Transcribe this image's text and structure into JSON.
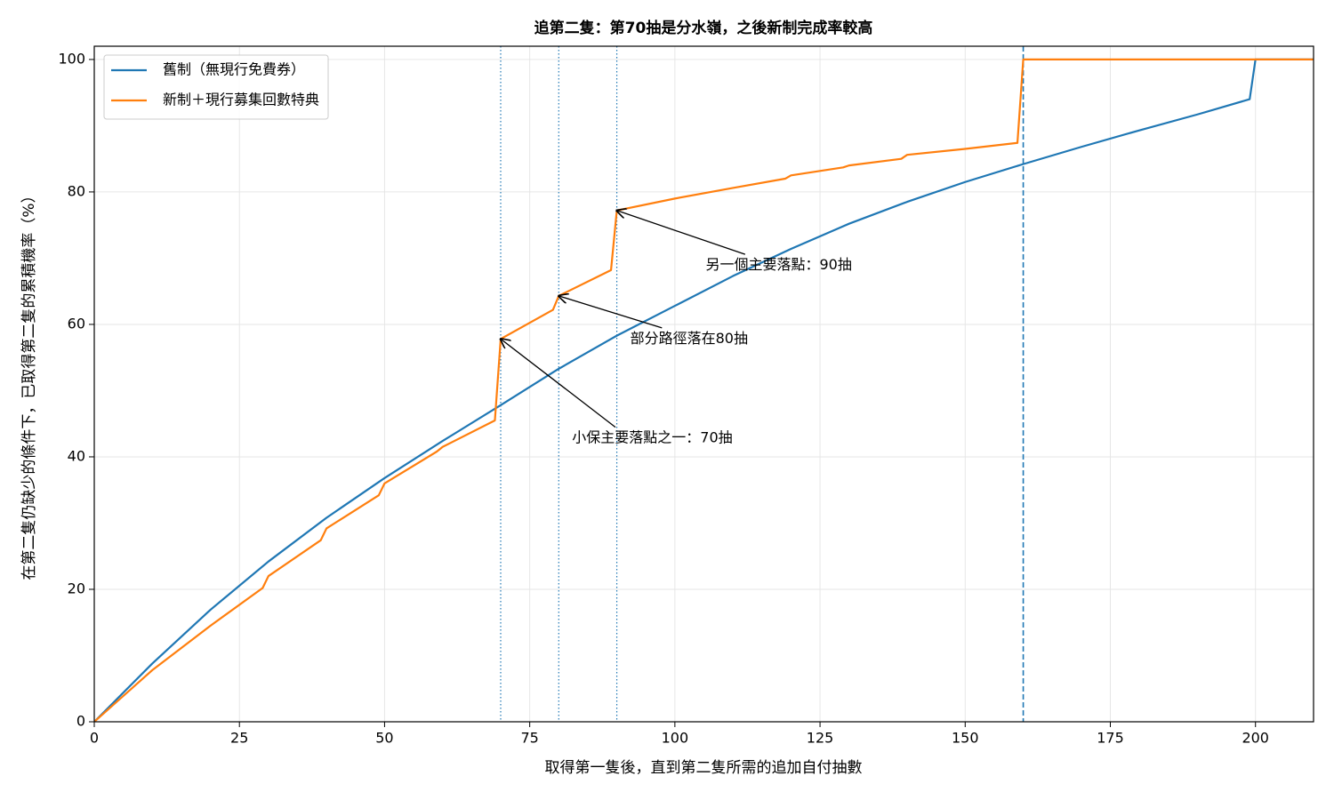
{
  "chart_data": {
    "type": "line",
    "title": "追第二隻：第70抽是分水嶺，之後新制完成率較高",
    "xlabel": "取得第一隻後，直到第二隻所需的追加自付抽數",
    "ylabel": "在第二隻仍缺少的條件下，已取得第二隻的累積機率（%）",
    "xlim": [
      0,
      210
    ],
    "ylim": [
      0,
      102
    ],
    "xticks": [
      0,
      25,
      50,
      75,
      100,
      125,
      150,
      175,
      200
    ],
    "yticks": [
      0,
      20,
      40,
      60,
      80,
      100
    ],
    "grid": true,
    "legend": "upper left",
    "series": [
      {
        "name": "舊制（無現行免費券）",
        "color": "#1f77b4",
        "x": [
          0,
          10,
          20,
          30,
          40,
          50,
          60,
          70,
          80,
          90,
          100,
          110,
          120,
          130,
          140,
          150,
          160,
          170,
          180,
          190,
          199,
          200,
          210
        ],
        "values": [
          0,
          8.8,
          16.9,
          24.2,
          30.8,
          36.8,
          42.4,
          47.8,
          53.3,
          58.3,
          62.8,
          67.3,
          71.4,
          75.2,
          78.5,
          81.5,
          84.2,
          86.8,
          89.3,
          91.7,
          94,
          100,
          100
        ]
      },
      {
        "name": "新制＋現行募集回數特典",
        "color": "#ff7f0e",
        "x": [
          0,
          10,
          20,
          29,
          30,
          39,
          40,
          49,
          50,
          59,
          60,
          69,
          70,
          79,
          80,
          89,
          90,
          100,
          110,
          119,
          120,
          129,
          130,
          139,
          140,
          150,
          159,
          160,
          210
        ],
        "values": [
          0,
          7.8,
          14.5,
          20.2,
          22,
          27.4,
          29.2,
          34.2,
          36,
          40.8,
          41.5,
          45.5,
          57.8,
          62.2,
          64.3,
          68.2,
          77.2,
          79,
          80.6,
          82,
          82.5,
          83.7,
          84,
          85,
          85.6,
          86.5,
          87.4,
          100,
          100
        ]
      }
    ],
    "vlines": [
      {
        "x": 70,
        "style": "dotted",
        "color": "#1f77b4"
      },
      {
        "x": 80,
        "style": "dotted",
        "color": "#1f77b4"
      },
      {
        "x": 90,
        "style": "dotted",
        "color": "#1f77b4"
      },
      {
        "x": 160,
        "style": "dashed",
        "color": "#1f77b4"
      }
    ],
    "annotations": [
      {
        "text": "另一個主要落點：90抽",
        "x": 90,
        "y": 77.2,
        "text_x": 105.3,
        "text_y": 68.9
      },
      {
        "text": "部分路徑落在80抽",
        "x": 80,
        "y": 64.3,
        "text_x": 92.3,
        "text_y": 57.8
      },
      {
        "text": "小保主要落點之一：70抽",
        "x": 70,
        "y": 57.8,
        "text_x": 82.3,
        "text_y": 42.8
      }
    ]
  }
}
